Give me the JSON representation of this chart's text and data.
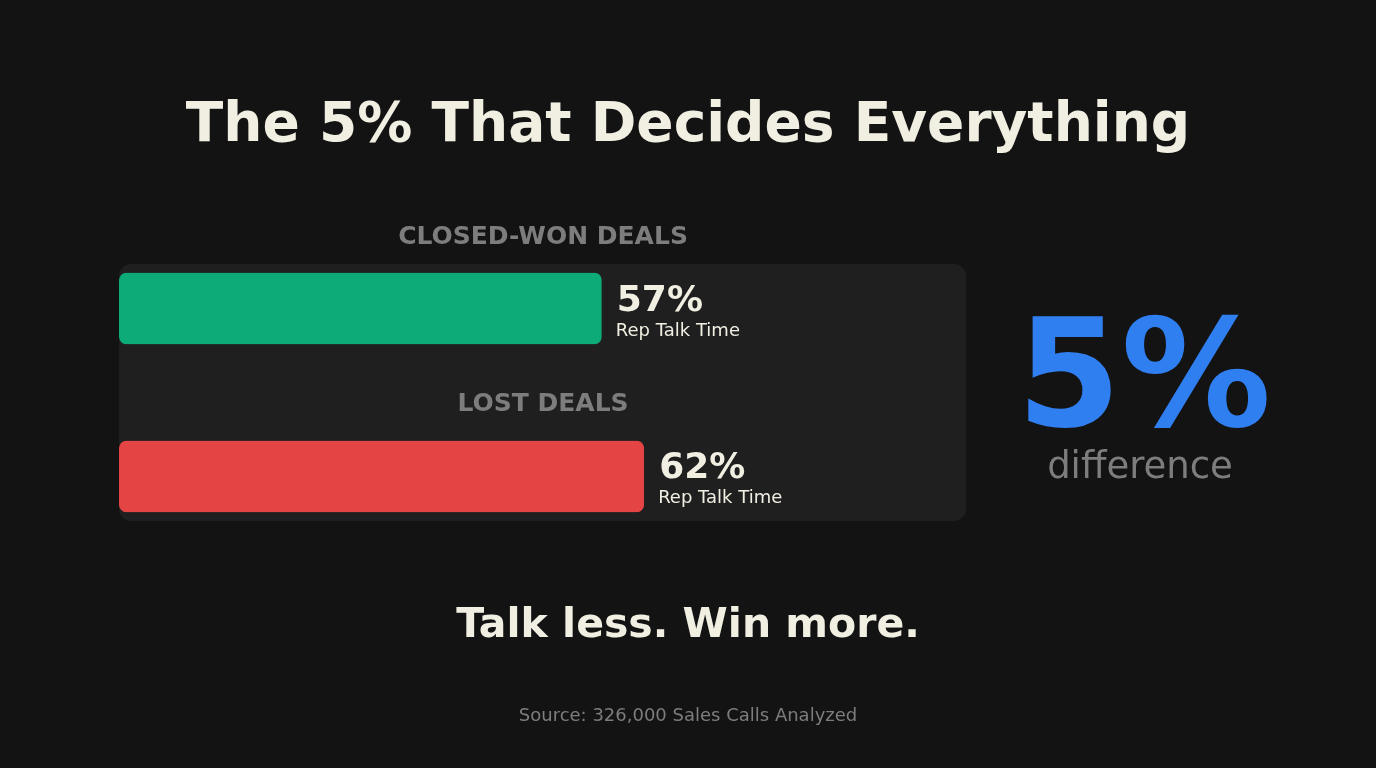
{
  "chart_data": {
    "type": "bar",
    "orientation": "horizontal",
    "title": "The 5% That Decides Everything",
    "categories": [
      "CLOSED-WON DEALS",
      "LOST DEALS"
    ],
    "values": [
      57,
      62
    ],
    "colors": [
      "#0dab78",
      "#e54444"
    ],
    "value_labels": [
      "57%",
      "62%"
    ],
    "xlim": [
      0,
      100
    ],
    "tick_labels": "y",
    "grid": false,
    "bands": [
      {
        "axis": "x",
        "from": 0,
        "to": 100,
        "color": "#1f1f1f"
      }
    ],
    "annotations": [
      "5%",
      "difference",
      {
        "text": "Rep Talk Time",
        "x": 57,
        "y": "CLOSED-WON DEALS"
      },
      {
        "text": "Rep Talk Time",
        "x": 62,
        "y": "LOST DEALS"
      },
      "Talk less. Win more.",
      "Source: 326,000 Sales Calls Analyzed"
    ]
  }
}
